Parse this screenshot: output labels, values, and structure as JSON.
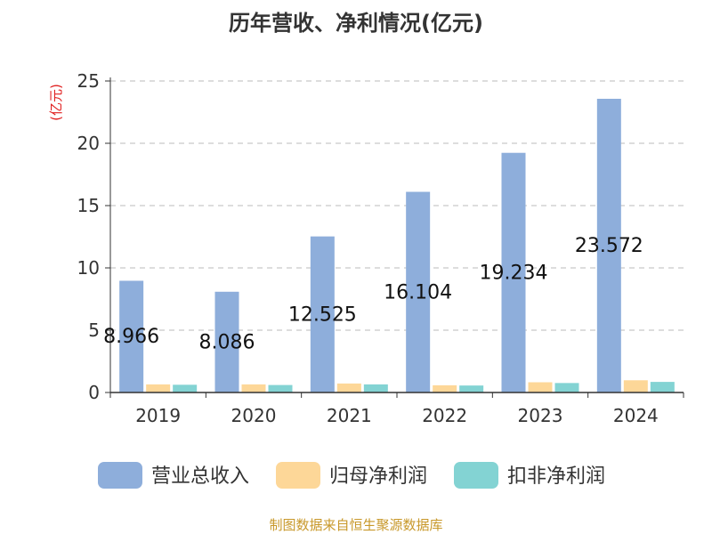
{
  "chart_data": {
    "type": "bar",
    "title": "历年营收、净利情况(亿元)",
    "ylabel": "(亿元)",
    "xlabel": "",
    "categories": [
      "2019",
      "2020",
      "2021",
      "2022",
      "2023",
      "2024"
    ],
    "ylim": [
      0,
      25
    ],
    "yticks": [
      "0",
      "5",
      "10",
      "15",
      "20",
      "25"
    ],
    "grid": true,
    "legend_position": "bottom",
    "series": [
      {
        "name": "营业总收入",
        "color": "#8eaedb",
        "values": [
          8.966,
          8.086,
          12.525,
          16.104,
          19.234,
          23.572
        ],
        "labels": [
          "8.966",
          "8.086",
          "12.525",
          "16.104",
          "19.234",
          "23.572"
        ]
      },
      {
        "name": "归母净利润",
        "color": "#fdd798",
        "values": [
          0.65,
          0.65,
          0.72,
          0.58,
          0.82,
          0.98
        ],
        "labels": []
      },
      {
        "name": "扣非净利润",
        "color": "#83d3d3",
        "values": [
          0.62,
          0.6,
          0.65,
          0.56,
          0.76,
          0.85
        ],
        "labels": []
      }
    ],
    "source": "制图数据来自恒生聚源数据库"
  },
  "colors": {
    "title": "#333333",
    "ylabel": "#e02020",
    "axis": "#333333",
    "grid": "#bbbbbb",
    "source": "#c8982a"
  }
}
